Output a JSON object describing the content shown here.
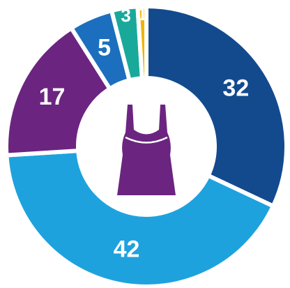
{
  "chart_data": {
    "type": "donut",
    "values": [
      32,
      42,
      17,
      5,
      3,
      1
    ],
    "colors": [
      "#134a8e",
      "#1ea2de",
      "#6b2580",
      "#1c6fbe",
      "#19a99b",
      "#f0b400"
    ]
  }
}
